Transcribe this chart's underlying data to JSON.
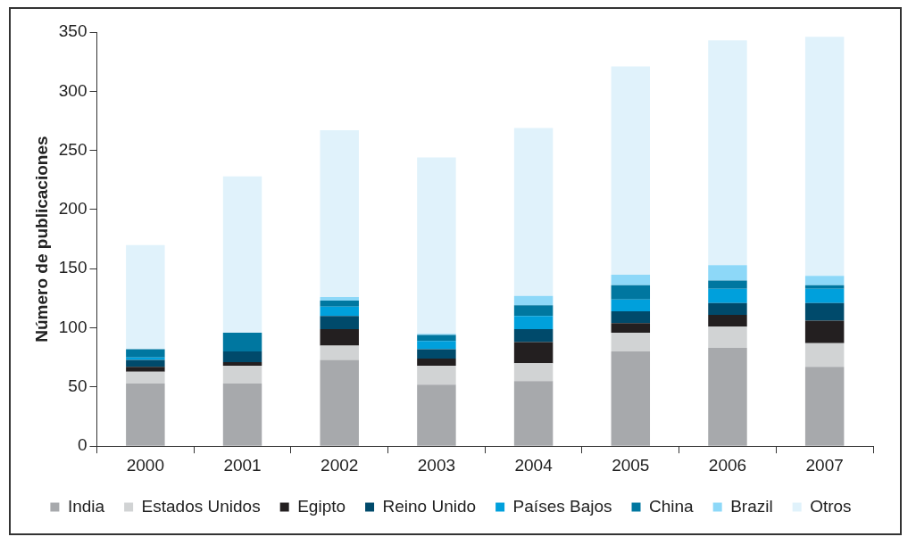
{
  "chart_data": {
    "type": "bar",
    "ylabel": "Número de publicaciones",
    "categories": [
      "2000",
      "2001",
      "2002",
      "2003",
      "2004",
      "2005",
      "2006",
      "2007"
    ],
    "stacked": true,
    "ylim": [
      0,
      350
    ],
    "yticks": [
      0,
      50,
      100,
      150,
      200,
      250,
      300,
      350
    ],
    "grid": false,
    "legend": "bottom",
    "series": [
      {
        "name": "India",
        "color": "#a7a9ac",
        "values": [
          53,
          53,
          73,
          52,
          55,
          80,
          83,
          67
        ]
      },
      {
        "name": "Estados Unidos",
        "color": "#d1d3d4",
        "values": [
          10,
          15,
          12,
          16,
          15,
          16,
          18,
          20
        ]
      },
      {
        "name": "Egipto",
        "color": "#231f20",
        "values": [
          4,
          3,
          14,
          6,
          18,
          8,
          10,
          19
        ]
      },
      {
        "name": "Reino Unido",
        "color": "#004a6b",
        "values": [
          6,
          9,
          11,
          8,
          11,
          10,
          10,
          15
        ]
      },
      {
        "name": "Países Bajos",
        "color": "#00a0dc",
        "values": [
          2,
          0,
          8,
          7,
          11,
          10,
          12,
          12
        ]
      },
      {
        "name": "China",
        "color": "#0077a0",
        "values": [
          7,
          16,
          5,
          5,
          9,
          12,
          7,
          3
        ]
      },
      {
        "name": "Brazil",
        "color": "#8dd8f8",
        "values": [
          0,
          0,
          3,
          1,
          8,
          9,
          13,
          8
        ]
      },
      {
        "name": "Otros",
        "color": "#e0f2fb",
        "values": [
          88,
          132,
          141,
          149,
          142,
          176,
          190,
          202
        ]
      }
    ]
  }
}
